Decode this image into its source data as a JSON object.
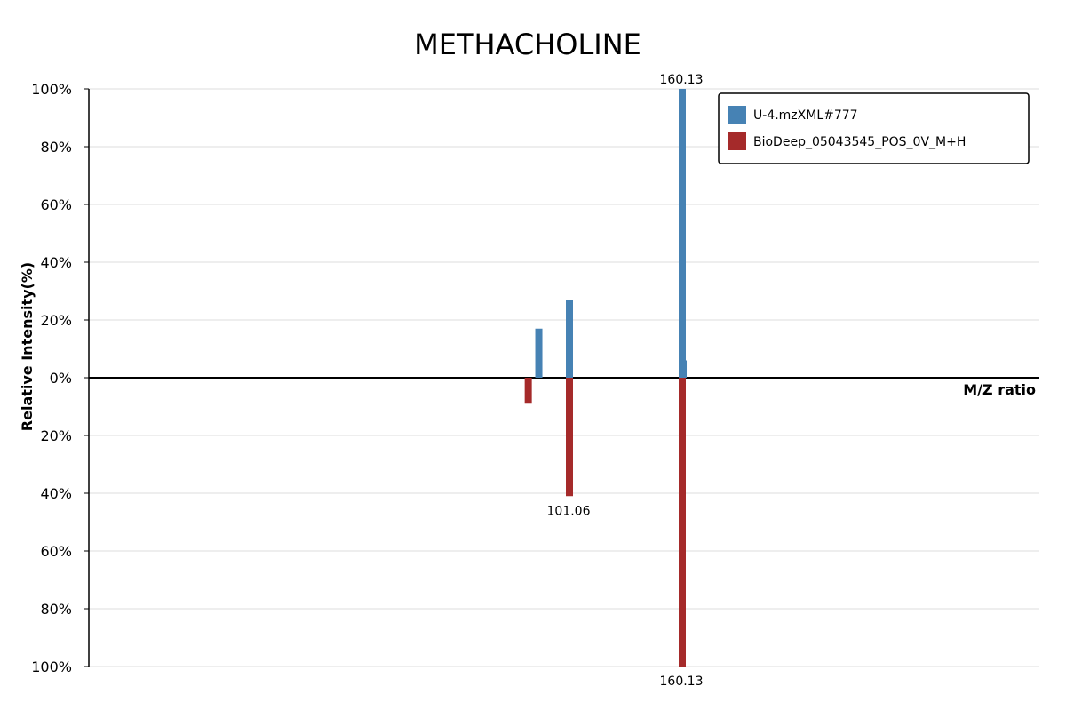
{
  "chart_data": {
    "type": "bar",
    "title": "METHACHOLINE",
    "xlabel": "M/Z ratio",
    "ylabel": "Relative Intensity(%)",
    "y_ticks_top": [
      "100%",
      "80%",
      "60%",
      "40%",
      "20%",
      "0%"
    ],
    "y_ticks_bottom": [
      "20%",
      "40%",
      "60%",
      "80%",
      "100%"
    ],
    "grid": true,
    "legend_position": "top-right",
    "series": [
      {
        "name": "U-4.mzXML#777",
        "color": "#4682b4",
        "direction": "up",
        "peaks": [
          {
            "mz": 85.03,
            "intensity": 17
          },
          {
            "mz": 101.06,
            "intensity": 27
          },
          {
            "mz": 160.13,
            "intensity": 100,
            "label": "160.13"
          },
          {
            "mz": 160.6,
            "intensity": 6
          }
        ]
      },
      {
        "name": "BioDeep_05043545_POS_0V_M+H",
        "color": "#a52a2a",
        "direction": "down",
        "peaks": [
          {
            "mz": 79.5,
            "intensity": 9
          },
          {
            "mz": 101.06,
            "intensity": 41,
            "label": "101.06"
          },
          {
            "mz": 160.13,
            "intensity": 100,
            "label": "160.13"
          }
        ]
      }
    ]
  }
}
